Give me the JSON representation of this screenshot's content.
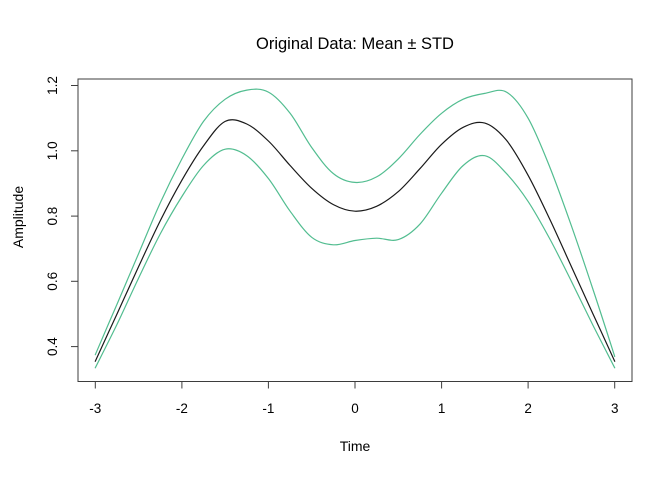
{
  "chart_data": {
    "type": "line",
    "title": "Original Data: Mean ± STD",
    "xlabel": "Time",
    "ylabel": "Amplitude",
    "xlim": [
      -3.2,
      3.2
    ],
    "ylim": [
      0.293,
      1.22
    ],
    "grid": false,
    "legend": "none",
    "x_ticks": [
      -3,
      -2,
      -1,
      0,
      1,
      2,
      3
    ],
    "x_tick_labels": [
      "-3",
      "-2",
      "-1",
      "0",
      "1",
      "2",
      "3"
    ],
    "y_ticks": [
      0.4,
      0.6,
      0.8,
      1.0,
      1.2
    ],
    "y_tick_labels": [
      "0.4",
      "0.6",
      "0.8",
      "1.0",
      "1.2"
    ],
    "x": [
      -3,
      -2.75,
      -2.5,
      -2.25,
      -2,
      -1.75,
      -1.5,
      -1.25,
      -1,
      -0.75,
      -0.5,
      -0.25,
      0,
      0.25,
      0.5,
      0.75,
      1,
      1.25,
      1.5,
      1.75,
      2,
      2.25,
      2.5,
      2.75,
      3
    ],
    "series": [
      {
        "name": "mean",
        "color": "#1a1a1a",
        "values": [
          0.355,
          0.5,
          0.645,
          0.785,
          0.91,
          1.015,
          1.09,
          1.082,
          1.03,
          0.955,
          0.885,
          0.835,
          0.815,
          0.83,
          0.875,
          0.945,
          1.02,
          1.072,
          1.085,
          1.032,
          0.925,
          0.79,
          0.645,
          0.5,
          0.355
        ]
      },
      {
        "name": "mean_plus_std",
        "color": "#52bd90",
        "values": [
          0.375,
          0.53,
          0.685,
          0.84,
          0.975,
          1.09,
          1.158,
          1.186,
          1.18,
          1.115,
          1.01,
          0.93,
          0.903,
          0.92,
          0.975,
          1.05,
          1.115,
          1.158,
          1.176,
          1.18,
          1.1,
          0.95,
          0.77,
          0.575,
          0.37
        ]
      },
      {
        "name": "mean_minus_std",
        "color": "#52bd90",
        "values": [
          0.335,
          0.468,
          0.61,
          0.745,
          0.86,
          0.955,
          1.005,
          0.985,
          0.915,
          0.815,
          0.735,
          0.712,
          0.725,
          0.732,
          0.728,
          0.775,
          0.87,
          0.955,
          0.985,
          0.93,
          0.845,
          0.73,
          0.6,
          0.465,
          0.335
        ]
      }
    ],
    "colors": {
      "mean_line": "#1a1a1a",
      "std_lines": "#52bd90",
      "box": "#3d3d3d",
      "background": "#ffffff"
    }
  }
}
